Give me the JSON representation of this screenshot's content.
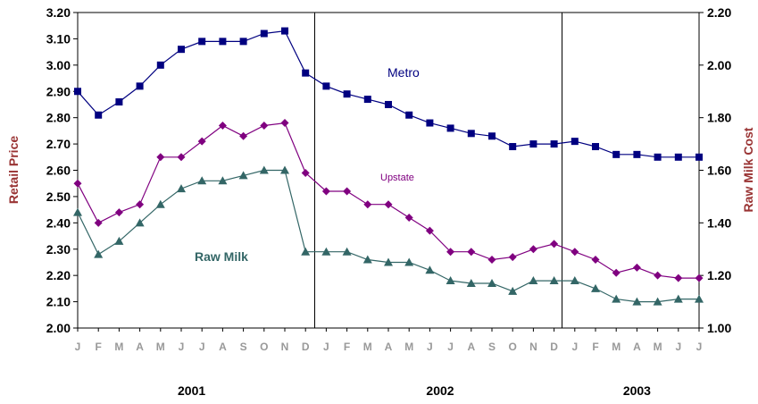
{
  "chart_data": {
    "type": "line",
    "ylabel_left": "Retail Price",
    "ylabel_right": "Raw Milk Cost",
    "ylim_left": [
      2.0,
      3.2
    ],
    "ylim_right": [
      1.0,
      2.2
    ],
    "yticks_left": [
      "2.00",
      "2.10",
      "2.20",
      "2.30",
      "2.40",
      "2.50",
      "2.60",
      "2.70",
      "2.80",
      "2.90",
      "3.00",
      "3.10",
      "3.20"
    ],
    "yticks_right": [
      "1.00",
      "1.20",
      "1.40",
      "1.60",
      "1.80",
      "2.00",
      "2.20"
    ],
    "month_labels": [
      "J",
      "F",
      "M",
      "A",
      "M",
      "J",
      "J",
      "A",
      "S",
      "O",
      "N",
      "D",
      "J",
      "F",
      "M",
      "A",
      "M",
      "J",
      "J",
      "A",
      "S",
      "O",
      "N",
      "D",
      "J",
      "F",
      "M",
      "A",
      "M",
      "J",
      "J"
    ],
    "years": [
      "2001",
      "2002",
      "2003"
    ],
    "grid": false,
    "series": [
      {
        "name": "Metro",
        "axis": "left",
        "color": "#000080",
        "marker": "square",
        "values": [
          2.9,
          2.81,
          2.86,
          2.92,
          3.0,
          3.06,
          3.09,
          3.09,
          3.09,
          3.12,
          3.13,
          2.97,
          2.92,
          2.89,
          2.87,
          2.85,
          2.81,
          2.78,
          2.76,
          2.74,
          2.73,
          2.69,
          2.7,
          2.7,
          2.71,
          2.69,
          2.66,
          2.66,
          2.65,
          2.65,
          2.65
        ]
      },
      {
        "name": "Upstate",
        "axis": "left",
        "color": "#800080",
        "marker": "diamond",
        "values": [
          2.55,
          2.4,
          2.44,
          2.47,
          2.65,
          2.65,
          2.71,
          2.77,
          2.73,
          2.77,
          2.78,
          2.59,
          2.52,
          2.52,
          2.47,
          2.47,
          2.42,
          2.37,
          2.29,
          2.29,
          2.26,
          2.27,
          2.3,
          2.32,
          2.29,
          2.26,
          2.21,
          2.23,
          2.2,
          2.19,
          2.19
        ]
      },
      {
        "name": "Raw Milk",
        "axis": "right",
        "color": "#336666",
        "marker": "triangle",
        "values": [
          1.44,
          1.28,
          1.33,
          1.4,
          1.47,
          1.53,
          1.56,
          1.56,
          1.58,
          1.6,
          1.6,
          1.29,
          1.29,
          1.29,
          1.26,
          1.25,
          1.25,
          1.22,
          1.18,
          1.17,
          1.17,
          1.14,
          1.18,
          1.18,
          1.18,
          1.15,
          1.11,
          1.1,
          1.1,
          1.11,
          1.11
        ]
      }
    ]
  }
}
